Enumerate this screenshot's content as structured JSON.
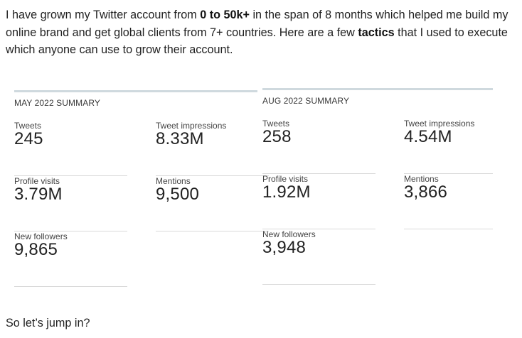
{
  "intro": {
    "part1": "I have grown my Twitter account from ",
    "bold1": "0 to 50k+",
    "part2": " in the span of 8 months which helped me build my online brand and get global clients from 7+ countries. Here are a few ",
    "bold2": "tactics",
    "part3": " that I used to execute which anyone can use to grow their account."
  },
  "may": {
    "heading": "MAY 2022 SUMMARY",
    "tweets_label": "Tweets",
    "tweets_value": "245",
    "impressions_label": "Tweet impressions",
    "impressions_value": "8.33M",
    "profile_label": "Profile visits",
    "profile_value": "3.79M",
    "mentions_label": "Mentions",
    "mentions_value": "9,500",
    "followers_label": "New followers",
    "followers_value": "9,865"
  },
  "aug": {
    "heading": "AUG 2022 SUMMARY",
    "tweets_label": "Tweets",
    "tweets_value": "258",
    "impressions_label": "Tweet impressions",
    "impressions_value": "4.54M",
    "profile_label": "Profile visits",
    "profile_value": "1.92M",
    "mentions_label": "Mentions",
    "mentions_value": "3,866",
    "followers_label": "New followers",
    "followers_value": "3,948"
  },
  "outro": "So let’s jump in?"
}
